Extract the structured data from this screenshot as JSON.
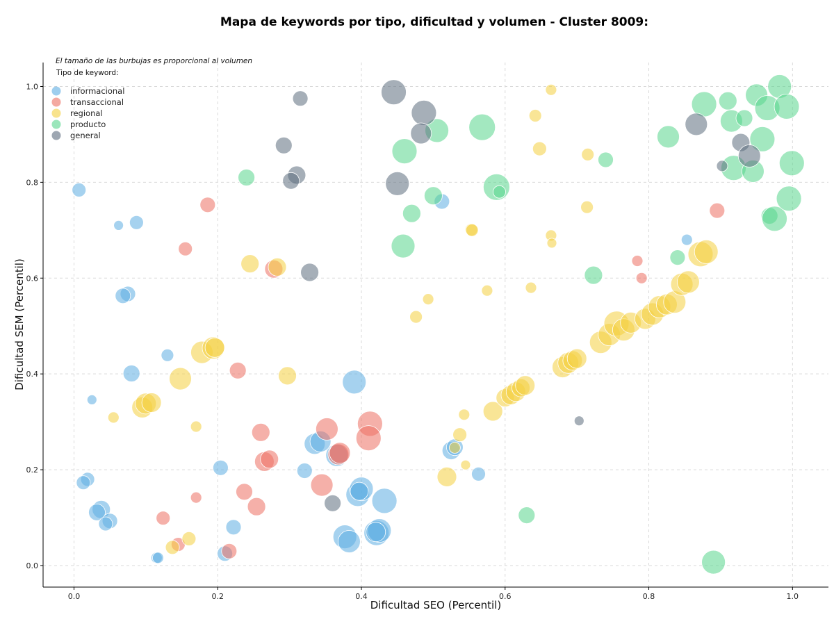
{
  "chart_data": {
    "type": "scatter",
    "title": "Mapa de keywords por tipo, dificultad y volumen - Cluster 8009:",
    "xlabel": "Dificultad SEO (Percentil)",
    "ylabel": "Dificultad SEM (Percentil)",
    "xlim": [
      -0.043,
      1.05
    ],
    "ylim": [
      -0.045,
      1.05
    ],
    "xticks": [
      "0.0",
      "0.2",
      "0.4",
      "0.6",
      "0.8",
      "1.0"
    ],
    "yticks": [
      "0.0",
      "0.2",
      "0.4",
      "0.6",
      "0.8",
      "1.0"
    ],
    "xtick_values": [
      0,
      0.2,
      0.4,
      0.6,
      0.8,
      1.0
    ],
    "ytick_values": [
      0,
      0.2,
      0.4,
      0.6,
      0.8,
      1.0
    ],
    "grid": true,
    "note": "El tamaño de las burbujas es proporcional al volumen",
    "legend_title": "Tipo de keyword:",
    "legend_position": "top-left",
    "series": [
      {
        "name": "informacional",
        "color": "#5DADE2",
        "points": [
          [
            0.007,
            0.784,
            10
          ],
          [
            0.062,
            0.71,
            7
          ],
          [
            0.087,
            0.716,
            10
          ],
          [
            0.075,
            0.567,
            11
          ],
          [
            0.068,
            0.563,
            11
          ],
          [
            0.13,
            0.439,
            9
          ],
          [
            0.08,
            0.401,
            12
          ],
          [
            0.025,
            0.346,
            7
          ],
          [
            0.019,
            0.18,
            10
          ],
          [
            0.013,
            0.173,
            10
          ],
          [
            0.038,
            0.117,
            13
          ],
          [
            0.032,
            0.111,
            12
          ],
          [
            0.05,
            0.093,
            11
          ],
          [
            0.044,
            0.087,
            10
          ],
          [
            0.115,
            0.016,
            8
          ],
          [
            0.117,
            0.016,
            8
          ],
          [
            0.204,
            0.204,
            11
          ],
          [
            0.21,
            0.025,
            11
          ],
          [
            0.222,
            0.08,
            11
          ],
          [
            0.321,
            0.198,
            11
          ],
          [
            0.335,
            0.254,
            15
          ],
          [
            0.343,
            0.259,
            15
          ],
          [
            0.366,
            0.23,
            16
          ],
          [
            0.39,
            0.383,
            17
          ],
          [
            0.395,
            0.148,
            17
          ],
          [
            0.4,
            0.16,
            17
          ],
          [
            0.397,
            0.155,
            13
          ],
          [
            0.377,
            0.06,
            17
          ],
          [
            0.383,
            0.05,
            16
          ],
          [
            0.421,
            0.068,
            18
          ],
          [
            0.425,
            0.073,
            17
          ],
          [
            0.42,
            0.07,
            14
          ],
          [
            0.432,
            0.135,
            18
          ],
          [
            0.525,
            0.24,
            13
          ],
          [
            0.53,
            0.247,
            12
          ],
          [
            0.563,
            0.191,
            10
          ],
          [
            0.512,
            0.76,
            11
          ],
          [
            0.853,
            0.68,
            8
          ]
        ]
      },
      {
        "name": "transaccional",
        "color": "#EC7063",
        "points": [
          [
            0.186,
            0.753,
            11
          ],
          [
            0.155,
            0.661,
            10
          ],
          [
            0.278,
            0.619,
            13
          ],
          [
            0.228,
            0.407,
            12
          ],
          [
            0.26,
            0.278,
            13
          ],
          [
            0.265,
            0.217,
            14
          ],
          [
            0.272,
            0.222,
            13
          ],
          [
            0.254,
            0.123,
            13
          ],
          [
            0.237,
            0.154,
            12
          ],
          [
            0.17,
            0.142,
            8
          ],
          [
            0.124,
            0.099,
            10
          ],
          [
            0.145,
            0.044,
            10
          ],
          [
            0.216,
            0.03,
            11
          ],
          [
            0.352,
            0.285,
            16
          ],
          [
            0.345,
            0.168,
            16
          ],
          [
            0.368,
            0.232,
            15
          ],
          [
            0.37,
            0.235,
            15
          ],
          [
            0.412,
            0.296,
            18
          ],
          [
            0.41,
            0.266,
            18
          ],
          [
            0.895,
            0.741,
            11
          ],
          [
            0.784,
            0.636,
            8
          ],
          [
            0.79,
            0.6,
            8
          ]
        ]
      },
      {
        "name": "regional",
        "color": "#F4D03F",
        "points": [
          [
            0.055,
            0.309,
            8
          ],
          [
            0.095,
            0.33,
            15
          ],
          [
            0.1,
            0.338,
            15
          ],
          [
            0.108,
            0.34,
            14
          ],
          [
            0.148,
            0.39,
            16
          ],
          [
            0.17,
            0.29,
            8
          ],
          [
            0.178,
            0.445,
            16
          ],
          [
            0.194,
            0.454,
            16
          ],
          [
            0.196,
            0.455,
            14
          ],
          [
            0.16,
            0.056,
            10
          ],
          [
            0.137,
            0.038,
            10
          ],
          [
            0.245,
            0.63,
            13
          ],
          [
            0.283,
            0.623,
            13
          ],
          [
            0.297,
            0.396,
            13
          ],
          [
            0.476,
            0.519,
            9
          ],
          [
            0.493,
            0.556,
            8
          ],
          [
            0.537,
            0.273,
            10
          ],
          [
            0.543,
            0.315,
            8
          ],
          [
            0.53,
            0.246,
            8
          ],
          [
            0.553,
            0.701,
            9
          ],
          [
            0.554,
            0.7,
            9
          ],
          [
            0.575,
            0.574,
            8
          ],
          [
            0.519,
            0.185,
            14
          ],
          [
            0.583,
            0.322,
            14
          ],
          [
            0.6,
            0.35,
            13
          ],
          [
            0.608,
            0.356,
            14
          ],
          [
            0.615,
            0.363,
            14
          ],
          [
            0.622,
            0.371,
            13
          ],
          [
            0.628,
            0.376,
            14
          ],
          [
            0.636,
            0.58,
            8
          ],
          [
            0.642,
            0.939,
            9
          ],
          [
            0.648,
            0.87,
            10
          ],
          [
            0.664,
            0.993,
            8
          ],
          [
            0.664,
            0.689,
            8
          ],
          [
            0.665,
            0.673,
            7
          ],
          [
            0.68,
            0.414,
            15
          ],
          [
            0.688,
            0.423,
            15
          ],
          [
            0.694,
            0.428,
            14
          ],
          [
            0.7,
            0.432,
            14
          ],
          [
            0.714,
            0.748,
            9
          ],
          [
            0.715,
            0.858,
            9
          ],
          [
            0.733,
            0.466,
            16
          ],
          [
            0.745,
            0.482,
            16
          ],
          [
            0.755,
            0.505,
            18
          ],
          [
            0.765,
            0.492,
            16
          ],
          [
            0.775,
            0.507,
            15
          ],
          [
            0.795,
            0.515,
            15
          ],
          [
            0.805,
            0.525,
            16
          ],
          [
            0.815,
            0.54,
            16
          ],
          [
            0.825,
            0.545,
            15
          ],
          [
            0.836,
            0.55,
            16
          ],
          [
            0.846,
            0.587,
            16
          ],
          [
            0.855,
            0.592,
            16
          ],
          [
            0.872,
            0.65,
            18
          ],
          [
            0.88,
            0.655,
            17
          ],
          [
            0.545,
            0.21,
            7
          ]
        ]
      },
      {
        "name": "producto",
        "color": "#58D68D",
        "points": [
          [
            0.24,
            0.81,
            12
          ],
          [
            0.46,
            0.865,
            18
          ],
          [
            0.47,
            0.735,
            13
          ],
          [
            0.458,
            0.667,
            17
          ],
          [
            0.5,
            0.772,
            13
          ],
          [
            0.505,
            0.908,
            17
          ],
          [
            0.568,
            0.915,
            19
          ],
          [
            0.588,
            0.79,
            19
          ],
          [
            0.592,
            0.78,
            9
          ],
          [
            0.63,
            0.105,
            12
          ],
          [
            0.723,
            0.606,
            13
          ],
          [
            0.74,
            0.847,
            11
          ],
          [
            0.827,
            0.895,
            16
          ],
          [
            0.84,
            0.643,
            11
          ],
          [
            0.877,
            0.963,
            18
          ],
          [
            0.91,
            0.97,
            13
          ],
          [
            0.915,
            0.928,
            16
          ],
          [
            0.933,
            0.934,
            12
          ],
          [
            0.918,
            0.83,
            18
          ],
          [
            0.945,
            0.823,
            16
          ],
          [
            0.95,
            0.982,
            16
          ],
          [
            0.958,
            0.89,
            18
          ],
          [
            0.965,
            0.955,
            18
          ],
          [
            0.968,
            0.73,
            12
          ],
          [
            0.975,
            0.724,
            18
          ],
          [
            0.982,
            1.0,
            17
          ],
          [
            0.992,
            0.958,
            18
          ],
          [
            0.995,
            0.766,
            18
          ],
          [
            0.999,
            0.84,
            18
          ],
          [
            0.89,
            0.007,
            17
          ]
        ]
      },
      {
        "name": "general",
        "color": "#5D6D7E",
        "points": [
          [
            0.315,
            0.975,
            11
          ],
          [
            0.292,
            0.877,
            12
          ],
          [
            0.31,
            0.815,
            13
          ],
          [
            0.302,
            0.803,
            12
          ],
          [
            0.328,
            0.612,
            13
          ],
          [
            0.445,
            0.988,
            18
          ],
          [
            0.487,
            0.945,
            18
          ],
          [
            0.483,
            0.902,
            15
          ],
          [
            0.45,
            0.797,
            17
          ],
          [
            0.36,
            0.13,
            12
          ],
          [
            0.703,
            0.302,
            7
          ],
          [
            0.866,
            0.921,
            16
          ],
          [
            0.902,
            0.834,
            8
          ],
          [
            0.928,
            0.883,
            13
          ],
          [
            0.94,
            0.855,
            16
          ]
        ]
      }
    ]
  }
}
